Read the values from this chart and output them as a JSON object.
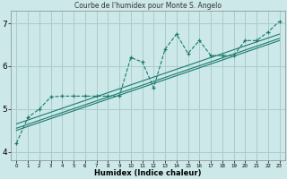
{
  "title": "Courbe de l'humidex pour Monte S. Angelo",
  "xlabel": "Humidex (Indice chaleur)",
  "bg_color": "#cce8e8",
  "grid_color": "#aacccc",
  "line_color": "#1a7a6e",
  "xlim": [
    -0.5,
    23.5
  ],
  "ylim": [
    3.8,
    7.3
  ],
  "yticks": [
    4,
    5,
    6,
    7
  ],
  "xticks": [
    0,
    1,
    2,
    3,
    4,
    5,
    6,
    7,
    8,
    9,
    10,
    11,
    12,
    13,
    14,
    15,
    16,
    17,
    18,
    19,
    20,
    21,
    22,
    23
  ],
  "main_x": [
    0,
    1,
    2,
    3,
    4,
    5,
    6,
    7,
    8,
    9,
    10,
    11,
    12,
    13,
    14,
    15,
    16,
    17,
    18,
    19,
    20,
    21,
    22,
    23
  ],
  "main_y": [
    4.2,
    4.8,
    5.0,
    5.28,
    5.3,
    5.3,
    5.3,
    5.3,
    5.3,
    5.3,
    6.2,
    6.1,
    5.5,
    6.4,
    6.75,
    6.3,
    6.6,
    6.25,
    6.25,
    6.25,
    6.6,
    6.6,
    6.8,
    7.05
  ],
  "line1_x": [
    0,
    23
  ],
  "line1_y": [
    4.5,
    6.6
  ],
  "line2_x": [
    0,
    23
  ],
  "line2_y": [
    4.65,
    6.75
  ],
  "line3_x": [
    0,
    23
  ],
  "line3_y": [
    4.55,
    6.65
  ]
}
